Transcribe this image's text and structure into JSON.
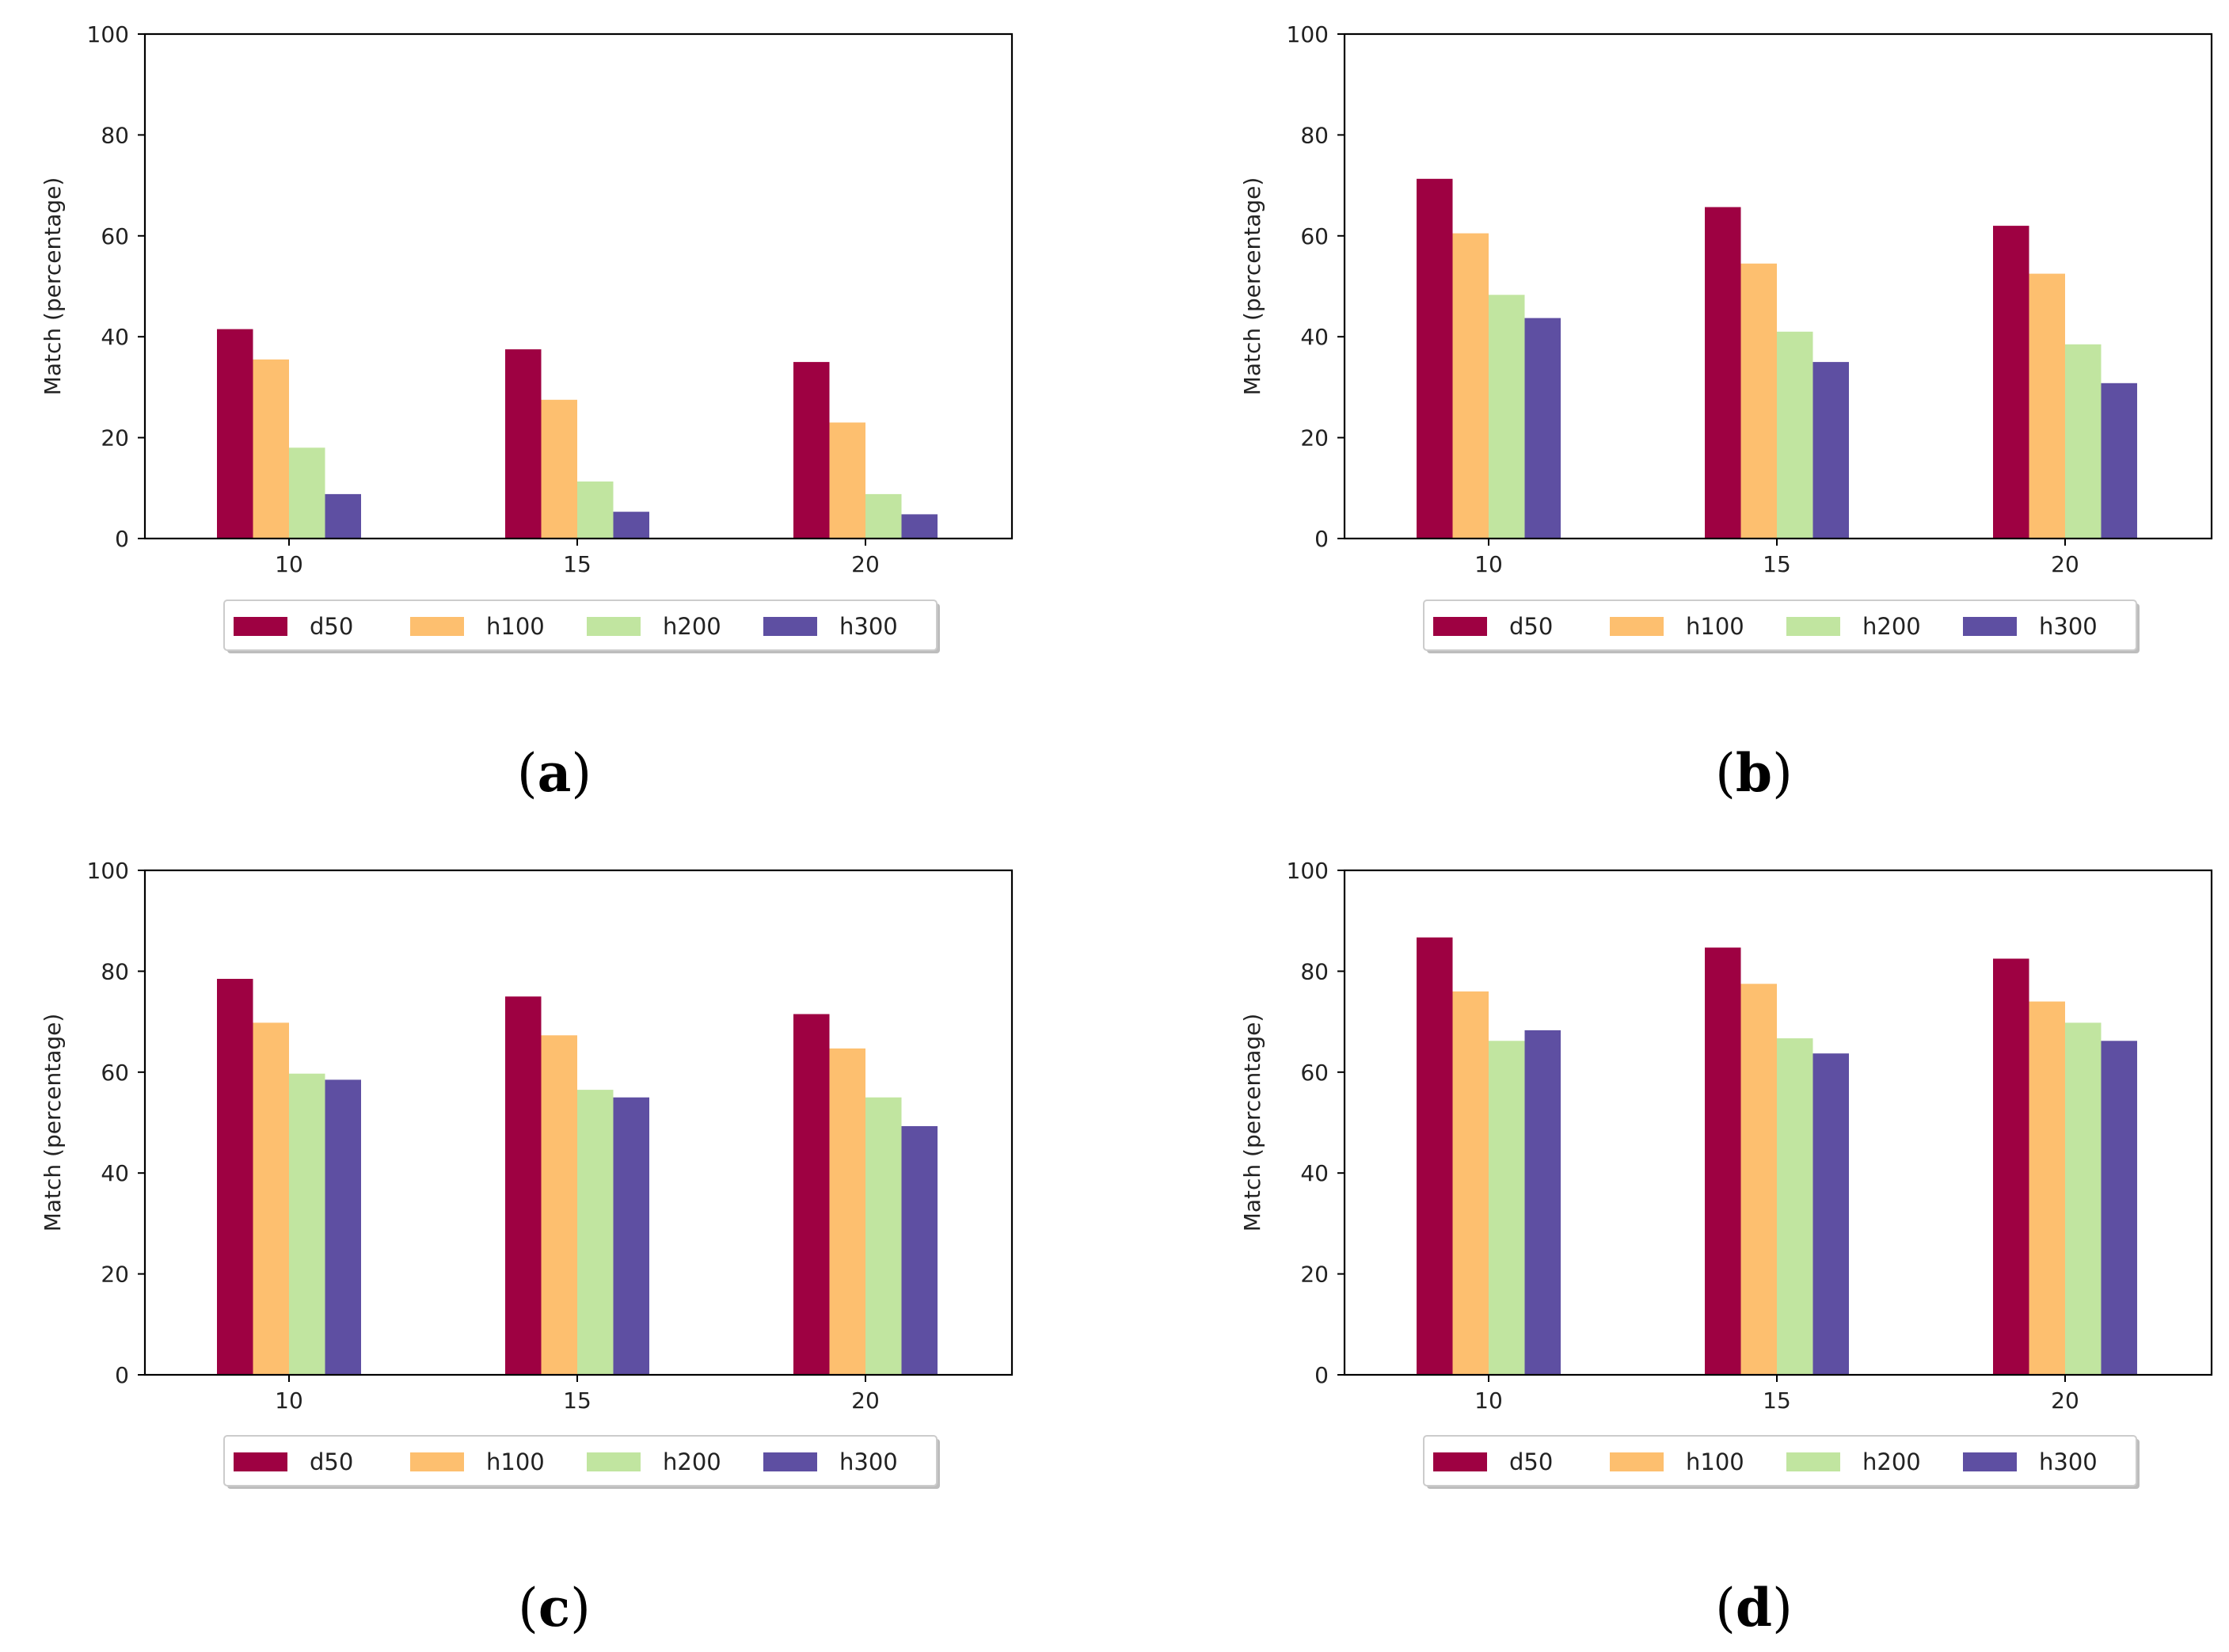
{
  "colors": {
    "d50": "#9e0142",
    "h100": "#fdbf6f",
    "h200": "#c1e5a0",
    "h300": "#5e4fa2",
    "axis": "#000000",
    "legend_border": "#cccccc"
  },
  "chart_data": [
    {
      "type": "bar",
      "caption_letter": "a",
      "categories": [
        "10",
        "15",
        "20"
      ],
      "series": [
        {
          "name": "d50",
          "values": [
            41.5,
            37.5,
            35.0
          ]
        },
        {
          "name": "h100",
          "values": [
            35.5,
            27.5,
            23.0
          ]
        },
        {
          "name": "h200",
          "values": [
            18.0,
            11.3,
            8.8
          ]
        },
        {
          "name": "h300",
          "values": [
            8.8,
            5.3,
            4.8
          ]
        }
      ],
      "ylabel": "Match (percentage)",
      "ylim": [
        0,
        100
      ],
      "yticks": [
        "0",
        "20",
        "40",
        "60",
        "80",
        "100"
      ],
      "legend": "bottom-center"
    },
    {
      "type": "bar",
      "caption_letter": "b",
      "categories": [
        "10",
        "15",
        "20"
      ],
      "series": [
        {
          "name": "d50",
          "values": [
            71.3,
            65.7,
            62.0
          ]
        },
        {
          "name": "h100",
          "values": [
            60.5,
            54.5,
            52.5
          ]
        },
        {
          "name": "h200",
          "values": [
            48.3,
            41.0,
            38.5
          ]
        },
        {
          "name": "h300",
          "values": [
            43.7,
            35.0,
            30.8
          ]
        }
      ],
      "ylabel": "Match (percentage)",
      "ylim": [
        0,
        100
      ],
      "yticks": [
        "0",
        "20",
        "40",
        "60",
        "80",
        "100"
      ],
      "legend": "bottom-center"
    },
    {
      "type": "bar",
      "caption_letter": "c",
      "categories": [
        "10",
        "15",
        "20"
      ],
      "series": [
        {
          "name": "d50",
          "values": [
            78.5,
            75.0,
            71.5
          ]
        },
        {
          "name": "h100",
          "values": [
            69.8,
            67.3,
            64.7
          ]
        },
        {
          "name": "h200",
          "values": [
            59.7,
            56.5,
            55.0
          ]
        },
        {
          "name": "h300",
          "values": [
            58.5,
            55.0,
            49.3
          ]
        }
      ],
      "ylabel": "Match (percentage)",
      "ylim": [
        0,
        100
      ],
      "yticks": [
        "0",
        "20",
        "40",
        "60",
        "80",
        "100"
      ],
      "legend": "bottom-center"
    },
    {
      "type": "bar",
      "caption_letter": "d",
      "categories": [
        "10",
        "15",
        "20"
      ],
      "series": [
        {
          "name": "d50",
          "values": [
            86.7,
            84.7,
            82.5
          ]
        },
        {
          "name": "h100",
          "values": [
            76.0,
            77.5,
            74.0
          ]
        },
        {
          "name": "h200",
          "values": [
            66.2,
            66.7,
            69.8
          ]
        },
        {
          "name": "h300",
          "values": [
            68.3,
            63.7,
            66.2
          ]
        }
      ],
      "ylabel": "Match (percentage)",
      "ylim": [
        0,
        100
      ],
      "yticks": [
        "0",
        "20",
        "40",
        "60",
        "80",
        "100"
      ],
      "legend": "bottom-center"
    }
  ]
}
